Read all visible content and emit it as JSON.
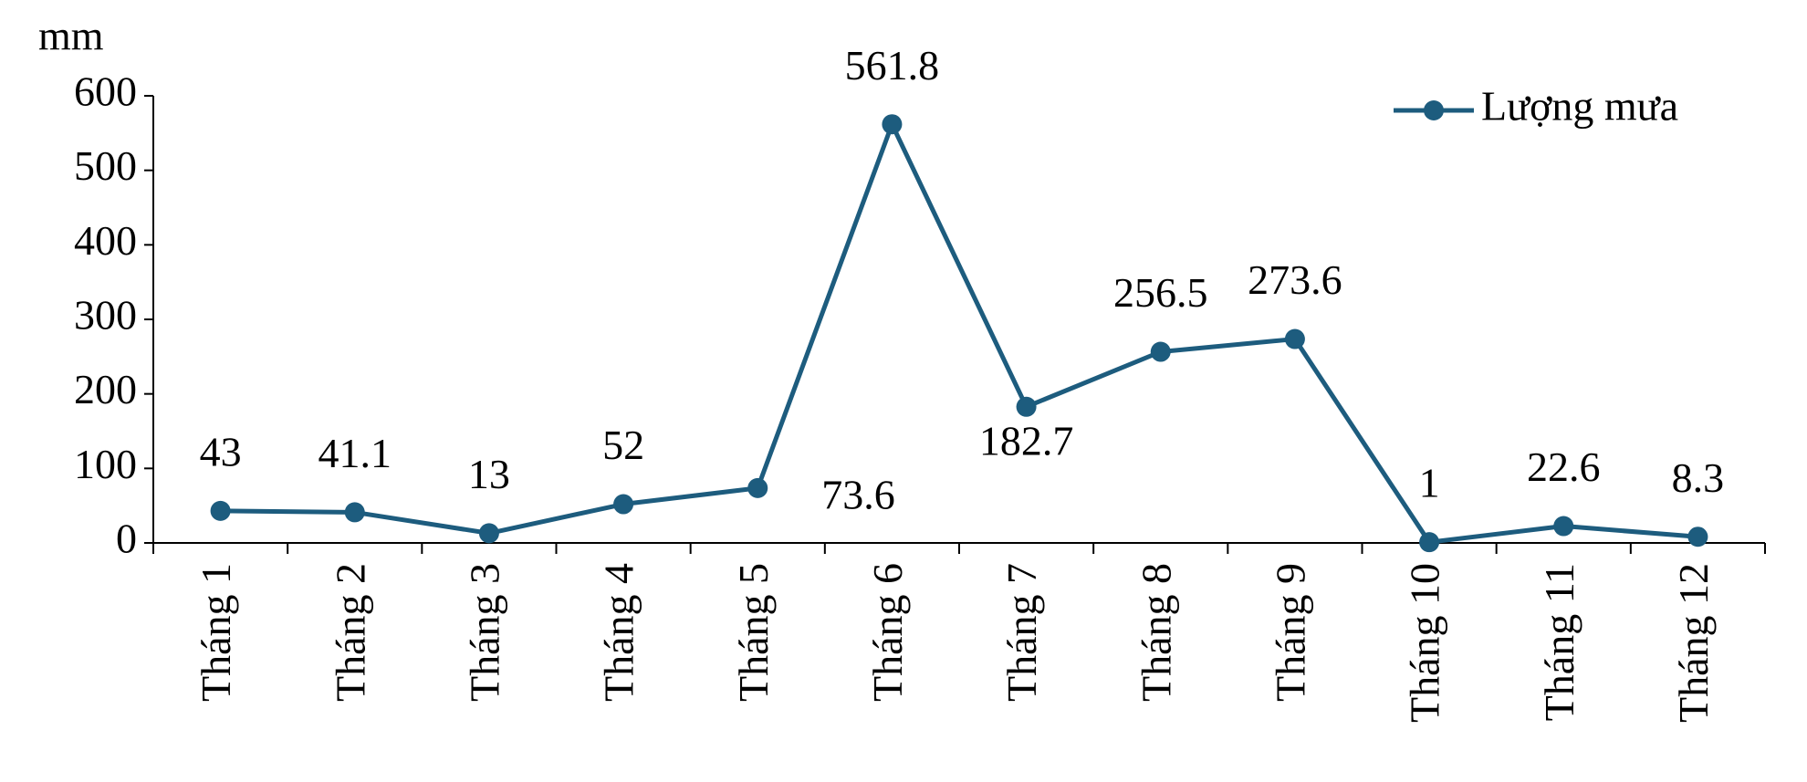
{
  "chart_data": {
    "type": "line",
    "y_label": "mm",
    "categories": [
      "Tháng 1",
      "Tháng 2",
      "Tháng 3",
      "Tháng 4",
      "Tháng 5",
      "Tháng 6",
      "Tháng 7",
      "Tháng 8",
      "Tháng 9",
      "Tháng 10",
      "Tháng 11",
      "Tháng 12"
    ],
    "series": [
      {
        "name": "Lượng mưa",
        "color": "#1d5c7e",
        "values": [
          43,
          41.1,
          13,
          52,
          73.6,
          561.8,
          182.7,
          256.5,
          273.6,
          1,
          22.6,
          8.3
        ]
      }
    ],
    "ylim": [
      0,
      600
    ],
    "yticks": [
      0,
      100,
      200,
      300,
      400,
      500,
      600
    ],
    "legend": "upper right"
  }
}
